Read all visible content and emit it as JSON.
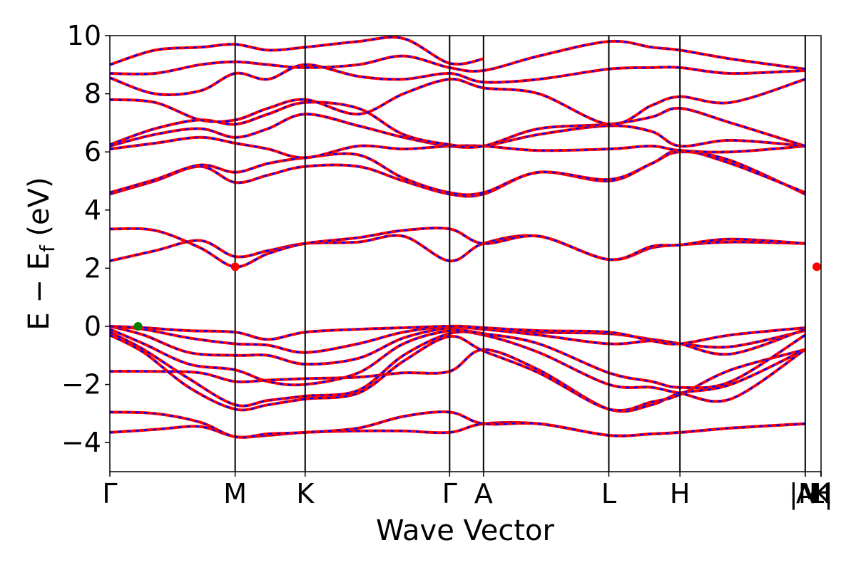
{
  "chart_data": {
    "type": "line",
    "xlabel": "Wave Vector",
    "ylabel": "E − E",
    "ylabel_subscript": "f",
    "ylabel_unit": " (eV)",
    "ylim": [
      -5,
      10
    ],
    "yticks": [
      -4,
      -2,
      0,
      2,
      4,
      6,
      8,
      10
    ],
    "ytick_labels": [
      "−4",
      "−2",
      "0",
      "2",
      "4",
      "6",
      "8",
      "10"
    ],
    "xlim": [
      0,
      6.3
    ],
    "kpoints": [
      {
        "label": "Γ",
        "x": 0.0
      },
      {
        "label": "M",
        "x": 1.11
      },
      {
        "label": "K",
        "x": 1.73
      },
      {
        "label": "Γ",
        "x": 3.01
      },
      {
        "label": "A",
        "x": 3.31
      },
      {
        "label": "L",
        "x": 4.42
      },
      {
        "label": "H",
        "x": 5.05
      },
      {
        "label": "A",
        "x": 6.16
      },
      {
        "label": "|M",
        "x": 6.16
      },
      {
        "label": "L|",
        "x": 6.46
      },
      {
        "label": "K",
        "x": 6.46
      },
      {
        "label": "H",
        "x": 6.3
      }
    ],
    "colors": {
      "spin_up": "#ff0000",
      "spin_down": "#0000ff",
      "vbm": "#008000",
      "cbm": "#ff0000"
    },
    "vbm": {
      "x": 0.25,
      "y": 0.0
    },
    "cbm": [
      {
        "x": 1.11,
        "y": 2.05
      },
      {
        "x": 6.46,
        "y": 2.05
      }
    ],
    "bands": [
      {
        "x": [
          0,
          0.4,
          0.8,
          1.11,
          1.4,
          1.73,
          2.2,
          2.6,
          3.01,
          3.31,
          3.8,
          4.42,
          4.8,
          5.05,
          5.5,
          6.16
        ],
        "y": [
          -3.65,
          -3.55,
          -3.45,
          -3.8,
          -3.75,
          -3.65,
          -3.6,
          -3.6,
          -3.65,
          -3.35,
          -3.35,
          -3.75,
          -3.7,
          -3.65,
          -3.5,
          -3.35
        ]
      },
      {
        "x": [
          0,
          0.4,
          0.8,
          1.11,
          1.4,
          1.73,
          2.2,
          2.6,
          3.01,
          3.31,
          3.8,
          4.42,
          4.8,
          5.05,
          5.5,
          6.16
        ],
        "y": [
          -2.95,
          -3.0,
          -3.3,
          -3.8,
          -3.7,
          -3.65,
          -3.5,
          -3.1,
          -2.95,
          -3.35,
          -3.35,
          -3.75,
          -3.7,
          -3.65,
          -3.5,
          -3.35
        ]
      },
      {
        "x": [
          0,
          0.4,
          0.8,
          1.11,
          1.4,
          1.73,
          2.2,
          2.6,
          3.01,
          3.31,
          3.8,
          4.42,
          4.8,
          5.05,
          5.5,
          6.16
        ],
        "y": [
          -1.55,
          -1.55,
          -1.6,
          -1.9,
          -1.85,
          -1.8,
          -1.75,
          -1.6,
          -1.55,
          -0.8,
          -1.5,
          -2.85,
          -2.7,
          -2.3,
          -2.0,
          -0.8
        ]
      },
      {
        "x": [
          0,
          0.3,
          0.7,
          1.11,
          1.4,
          1.73,
          2.2,
          2.6,
          3.01,
          3.31,
          3.8,
          4.42,
          4.8,
          5.05,
          5.5,
          6.16
        ],
        "y": [
          -0.3,
          -0.9,
          -2.1,
          -2.85,
          -2.7,
          -2.5,
          -2.3,
          -1.2,
          -0.35,
          -0.85,
          -1.6,
          -2.85,
          -2.6,
          -2.35,
          -1.5,
          -0.8
        ]
      },
      {
        "x": [
          0,
          0.3,
          0.7,
          1.11,
          1.4,
          1.73,
          2.2,
          2.6,
          3.01,
          3.31,
          3.8,
          4.42,
          4.8,
          5.05,
          5.5,
          6.16
        ],
        "y": [
          -0.2,
          -0.8,
          -1.8,
          -2.7,
          -2.55,
          -2.4,
          -2.2,
          -1.0,
          -0.25,
          -0.3,
          -0.9,
          -2.0,
          -2.1,
          -2.3,
          -2.5,
          -0.8
        ]
      },
      {
        "x": [
          0,
          0.3,
          0.7,
          1.11,
          1.4,
          1.73,
          2.2,
          2.6,
          3.01,
          3.31,
          3.8,
          4.42,
          4.8,
          5.05,
          5.5,
          6.16
        ],
        "y": [
          -0.1,
          -0.6,
          -1.3,
          -1.5,
          -1.9,
          -2.0,
          -1.6,
          -0.6,
          -0.15,
          -0.25,
          -0.6,
          -1.6,
          -1.9,
          -2.1,
          -1.9,
          -0.3
        ]
      },
      {
        "x": [
          0,
          0.3,
          0.7,
          1.11,
          1.4,
          1.73,
          2.2,
          2.6,
          3.01,
          3.31,
          3.8,
          4.42,
          4.8,
          5.05,
          5.5,
          6.16
        ],
        "y": [
          0.0,
          -0.3,
          -0.9,
          -1.0,
          -1.0,
          -1.3,
          -1.1,
          -0.4,
          -0.05,
          -0.1,
          -0.3,
          -0.6,
          -0.5,
          -0.6,
          -0.7,
          -0.15
        ]
      },
      {
        "x": [
          0,
          0.3,
          0.7,
          1.11,
          1.4,
          1.73,
          2.2,
          2.6,
          3.01,
          3.31,
          3.8,
          4.42,
          4.8,
          5.05,
          5.5,
          6.16
        ],
        "y": [
          0.0,
          -0.1,
          -0.4,
          -0.6,
          -0.65,
          -0.9,
          -0.6,
          -0.2,
          0.0,
          -0.05,
          -0.2,
          -0.25,
          -0.45,
          -0.6,
          -0.95,
          -0.1
        ]
      },
      {
        "x": [
          0,
          0.3,
          0.7,
          1.11,
          1.4,
          1.73,
          2.2,
          2.6,
          3.01,
          3.31,
          3.8,
          4.42,
          4.8,
          5.05,
          5.5,
          6.16
        ],
        "y": [
          0.0,
          -0.05,
          -0.15,
          -0.2,
          -0.45,
          -0.2,
          -0.1,
          -0.05,
          0.0,
          -0.05,
          -0.15,
          -0.2,
          -0.5,
          -0.6,
          -0.3,
          -0.05
        ]
      },
      {
        "x": [
          0,
          0.4,
          0.8,
          1.11,
          1.4,
          1.73,
          2.2,
          2.6,
          3.01,
          3.31,
          3.8,
          4.42,
          4.8,
          5.05,
          5.5,
          6.16
        ],
        "y": [
          2.25,
          2.6,
          2.95,
          2.4,
          2.6,
          2.85,
          2.9,
          3.1,
          2.25,
          2.85,
          3.1,
          2.3,
          2.7,
          2.8,
          2.9,
          2.85
        ]
      },
      {
        "x": [
          0,
          0.4,
          0.8,
          1.11,
          1.4,
          1.73,
          2.2,
          2.6,
          3.01,
          3.31,
          3.8,
          4.42,
          4.8,
          5.05,
          5.5,
          6.16
        ],
        "y": [
          3.35,
          3.3,
          2.7,
          2.05,
          2.5,
          2.85,
          3.05,
          3.3,
          3.35,
          2.85,
          3.1,
          2.3,
          2.75,
          2.8,
          3.0,
          2.85
        ]
      },
      {
        "x": [
          0,
          0.4,
          0.8,
          1.11,
          1.4,
          1.73,
          2.2,
          2.6,
          3.01,
          3.31,
          3.8,
          4.42,
          4.8,
          5.05,
          5.5,
          6.16
        ],
        "y": [
          4.55,
          5.0,
          5.5,
          4.95,
          5.2,
          5.5,
          5.5,
          5.0,
          4.55,
          4.55,
          5.3,
          5.0,
          5.6,
          6.0,
          5.7,
          4.55
        ]
      },
      {
        "x": [
          0,
          0.4,
          0.8,
          1.11,
          1.4,
          1.73,
          2.2,
          2.6,
          3.01,
          3.31,
          3.8,
          4.42,
          4.8,
          5.05,
          5.5,
          6.16
        ],
        "y": [
          4.6,
          5.05,
          5.55,
          5.3,
          5.6,
          5.8,
          5.9,
          5.1,
          4.6,
          4.6,
          5.3,
          5.05,
          5.6,
          6.05,
          5.6,
          4.6
        ]
      },
      {
        "x": [
          0,
          0.4,
          0.8,
          1.11,
          1.4,
          1.73,
          2.2,
          2.6,
          3.01,
          3.31,
          3.8,
          4.42,
          4.8,
          5.05,
          5.5,
          6.16
        ],
        "y": [
          6.1,
          6.3,
          6.5,
          6.3,
          6.1,
          5.8,
          6.2,
          6.1,
          6.2,
          6.2,
          6.05,
          6.1,
          6.2,
          6.05,
          6.0,
          6.2
        ]
      },
      {
        "x": [
          0,
          0.4,
          0.8,
          1.11,
          1.4,
          1.73,
          2.2,
          2.6,
          3.01,
          3.31,
          3.8,
          4.42,
          4.8,
          5.05,
          5.5,
          6.16
        ],
        "y": [
          6.2,
          6.6,
          6.8,
          6.5,
          6.8,
          7.3,
          6.9,
          6.5,
          6.2,
          6.2,
          6.6,
          6.9,
          6.7,
          6.2,
          6.4,
          6.2
        ]
      },
      {
        "x": [
          0,
          0.4,
          0.8,
          1.11,
          1.4,
          1.73,
          2.2,
          2.6,
          3.01,
          3.31,
          3.8,
          4.42,
          4.8,
          5.05,
          5.5,
          6.16
        ],
        "y": [
          6.25,
          6.8,
          7.1,
          6.95,
          7.3,
          7.7,
          7.5,
          6.6,
          6.25,
          6.2,
          6.8,
          6.95,
          7.2,
          7.5,
          7.0,
          6.2
        ]
      },
      {
        "x": [
          0,
          0.4,
          0.8,
          1.11,
          1.4,
          1.73,
          2.2,
          2.6,
          3.01,
          3.31,
          3.8,
          4.42,
          4.8,
          5.05,
          5.5,
          6.16
        ],
        "y": [
          7.8,
          7.7,
          7.1,
          7.1,
          7.5,
          7.8,
          7.3,
          8.0,
          8.5,
          8.2,
          8.0,
          6.95,
          7.6,
          7.9,
          7.7,
          8.5
        ]
      },
      {
        "x": [
          0,
          0.4,
          0.8,
          1.11,
          1.4,
          1.73,
          2.2,
          2.6,
          3.01,
          3.31,
          3.8,
          4.42,
          4.8,
          5.05,
          5.5,
          6.16
        ],
        "y": [
          8.55,
          8.0,
          8.1,
          8.7,
          8.5,
          9.0,
          8.6,
          8.5,
          8.7,
          8.4,
          8.5,
          8.85,
          8.9,
          8.9,
          8.7,
          8.8
        ]
      },
      {
        "x": [
          0,
          0.4,
          0.8,
          1.11,
          1.4,
          1.73,
          2.2,
          2.6,
          3.01,
          3.31,
          3.8,
          4.42,
          4.8,
          5.05,
          5.5,
          6.16
        ],
        "y": [
          8.7,
          8.7,
          9.0,
          9.1,
          9.0,
          8.9,
          9.0,
          9.3,
          8.9,
          8.8,
          9.3,
          9.8,
          9.6,
          9.5,
          9.2,
          8.85
        ]
      },
      {
        "x": [
          0,
          0.4,
          0.8,
          1.11,
          1.4,
          1.73,
          2.2,
          2.6,
          3.01,
          3.31
        ],
        "y": [
          9.0,
          9.5,
          9.6,
          9.7,
          9.5,
          9.6,
          9.8,
          9.9,
          9.05,
          9.2
        ]
      }
    ]
  }
}
